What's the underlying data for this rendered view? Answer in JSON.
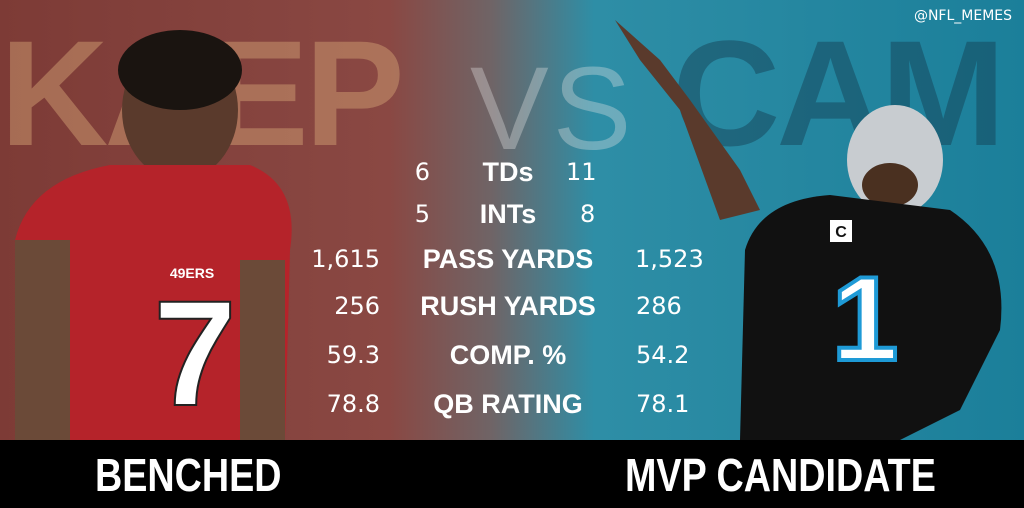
{
  "header": {
    "left_name": "KAEP",
    "versus": "VS",
    "right_name": "CAM",
    "watermark": "@NFL_MEMES"
  },
  "stats": {
    "rows": [
      {
        "left": "6",
        "label": "TDs",
        "right": "11"
      },
      {
        "left": "5",
        "label": "INTs",
        "right": "8"
      },
      {
        "left": "1,615",
        "label": "PASS YARDS",
        "right": "1,523"
      },
      {
        "left": "256",
        "label": "RUSH YARDS",
        "right": "286"
      },
      {
        "left": "59.3",
        "label": "COMP. %",
        "right": "54.2"
      },
      {
        "left": "78.8",
        "label": "QB RATING",
        "right": "78.1"
      }
    ]
  },
  "players": [
    {
      "jersey_number": "7",
      "team_text": "49ERS"
    },
    {
      "jersey_number": "1",
      "patch": "C"
    }
  ],
  "footer": {
    "left": "BENCHED",
    "right": "MVP CANDIDATE"
  }
}
